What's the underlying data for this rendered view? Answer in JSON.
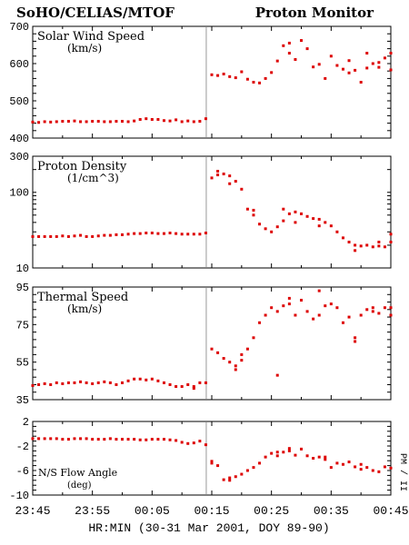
{
  "header": {
    "left_title": "SoHO/CELIAS/MTOF",
    "right_title": "Proton Monitor"
  },
  "xaxis": {
    "label": "HR:MIN (30-31 Mar 2001, DOY 89-90)",
    "tick_labels": [
      "23:45",
      "23:55",
      "00:05",
      "00:15",
      "00:25",
      "00:35",
      "00:45"
    ],
    "range_minutes": [
      0,
      60
    ]
  },
  "side_label": "PM / II",
  "colors": {
    "data": "#dd0000",
    "axes": "#000000",
    "divider": "#999999",
    "background": "#ffffff"
  },
  "chart_data": [
    {
      "type": "scatter",
      "title": "Solar Wind Speed",
      "units": "(km/s)",
      "x_unit": "minutes after 23:45",
      "ylim": [
        400,
        700
      ],
      "log": false,
      "yticks": [
        "700",
        "600",
        "500",
        "400"
      ],
      "ytick_values": [
        700,
        600,
        500,
        400
      ],
      "gap_at": 29,
      "x": [
        0,
        1,
        2,
        3,
        4,
        5,
        6,
        7,
        8,
        9,
        10,
        11,
        12,
        13,
        14,
        15,
        16,
        17,
        18,
        19,
        20,
        21,
        22,
        23,
        24,
        25,
        26,
        27,
        28,
        29,
        30,
        31,
        32,
        33,
        34,
        35,
        36,
        37,
        38,
        39,
        40,
        41,
        42,
        43,
        44,
        45,
        46,
        47,
        48,
        49,
        50,
        51,
        52,
        53,
        54,
        55,
        56,
        57,
        58,
        59,
        60
      ],
      "values": [
        443,
        442,
        444,
        443,
        444,
        445,
        445,
        446,
        444,
        444,
        445,
        445,
        444,
        444,
        445,
        445,
        444,
        446,
        450,
        452,
        450,
        450,
        447,
        446,
        449,
        444,
        446,
        444,
        445,
        452,
        570,
        568,
        572,
        565,
        562,
        578,
        558,
        550,
        548,
        560,
        576,
        607,
        648,
        628,
        611,
        662,
        640,
        591,
        598,
        560,
        620,
        595,
        585,
        575,
        582,
        550,
        588,
        600,
        590,
        615,
        583
      ],
      "extra_points": [
        [
          43,
          655
        ],
        [
          56,
          628
        ],
        [
          58,
          603
        ],
        [
          60,
          628
        ],
        [
          53,
          608
        ]
      ]
    },
    {
      "type": "scatter",
      "title": "Proton Density",
      "units": "(1/cm^3)",
      "x_unit": "minutes after 23:45",
      "ylim": [
        10,
        300
      ],
      "log": true,
      "yticks": [
        "300",
        "100",
        "10"
      ],
      "ytick_values": [
        300,
        100,
        10
      ],
      "gap_at": 29,
      "x": [
        0,
        1,
        2,
        3,
        4,
        5,
        6,
        7,
        8,
        9,
        10,
        11,
        12,
        13,
        14,
        15,
        16,
        17,
        18,
        19,
        20,
        21,
        22,
        23,
        24,
        25,
        26,
        27,
        28,
        29,
        30,
        31,
        32,
        33,
        34,
        35,
        36,
        37,
        38,
        39,
        40,
        41,
        42,
        43,
        44,
        45,
        46,
        47,
        48,
        49,
        50,
        51,
        52,
        53,
        54,
        55,
        56,
        57,
        58,
        59,
        60
      ],
      "values": [
        26,
        26,
        26,
        26,
        26,
        26.5,
        26,
        26.5,
        27,
        26,
        26,
        26.5,
        27,
        27,
        27.5,
        27.5,
        28,
        28.5,
        28.5,
        29,
        29,
        28.5,
        28.5,
        29,
        28.5,
        28,
        28,
        28,
        28,
        29,
        155,
        170,
        175,
        165,
        140,
        110,
        60,
        50,
        38,
        33,
        30,
        35,
        42,
        52,
        55,
        52,
        48,
        45,
        44,
        40,
        36,
        30,
        25,
        22,
        20,
        19.5,
        20,
        19,
        19.5,
        19,
        22
      ],
      "extra_points": [
        [
          31,
          190
        ],
        [
          33,
          130
        ],
        [
          37,
          58
        ],
        [
          42,
          60
        ],
        [
          44,
          40
        ],
        [
          48,
          36
        ],
        [
          54,
          17
        ],
        [
          58,
          22
        ],
        [
          60,
          28
        ]
      ]
    },
    {
      "type": "scatter",
      "title": "Thermal Speed",
      "units": "(km/s)",
      "x_unit": "minutes after 23:45",
      "ylim": [
        35,
        95
      ],
      "log": false,
      "yticks": [
        "95",
        "75",
        "55",
        "35"
      ],
      "ytick_values": [
        95,
        75,
        55,
        35
      ],
      "gap_at": 29,
      "x": [
        0,
        1,
        2,
        3,
        4,
        5,
        6,
        7,
        8,
        9,
        10,
        11,
        12,
        13,
        14,
        15,
        16,
        17,
        18,
        19,
        20,
        21,
        22,
        23,
        24,
        25,
        26,
        27,
        28,
        29,
        30,
        31,
        32,
        33,
        34,
        35,
        36,
        37,
        38,
        39,
        40,
        41,
        42,
        43,
        44,
        45,
        46,
        47,
        48,
        49,
        50,
        51,
        52,
        53,
        54,
        55,
        56,
        57,
        58,
        59,
        60
      ],
      "values": [
        42.5,
        43,
        43.5,
        43,
        44,
        43.5,
        44,
        44,
        44.5,
        44,
        43.5,
        44,
        44.5,
        44,
        43,
        44,
        45,
        46,
        46,
        45.5,
        46,
        45,
        44,
        43,
        42,
        42,
        43,
        42,
        44,
        44,
        62,
        60,
        57,
        55,
        53,
        56,
        62,
        68,
        76,
        80,
        84,
        82,
        85,
        86,
        80,
        88,
        82,
        78,
        80,
        85,
        86,
        84,
        76,
        79,
        68,
        80,
        83,
        84,
        81,
        84,
        80
      ],
      "extra_points": [
        [
          27,
          41
        ],
        [
          34,
          51
        ],
        [
          35,
          59
        ],
        [
          41,
          48
        ],
        [
          43,
          89
        ],
        [
          48,
          93
        ],
        [
          54,
          66
        ],
        [
          57,
          82
        ],
        [
          60,
          84
        ]
      ]
    },
    {
      "type": "scatter",
      "title": "N/S Flow Angle",
      "units": "(deg)",
      "x_unit": "minutes after 23:45",
      "ylim": [
        -10,
        2
      ],
      "log": false,
      "yticks": [
        "2",
        "-2",
        "-6",
        "-10"
      ],
      "ytick_values": [
        2,
        -2,
        -6,
        -10
      ],
      "gap_at": 29,
      "x": [
        0,
        1,
        2,
        3,
        4,
        5,
        6,
        7,
        8,
        9,
        10,
        11,
        12,
        13,
        14,
        15,
        16,
        17,
        18,
        19,
        20,
        21,
        22,
        23,
        24,
        25,
        26,
        27,
        28,
        29,
        30,
        31,
        32,
        33,
        34,
        35,
        36,
        37,
        38,
        39,
        40,
        41,
        42,
        43,
        44,
        45,
        46,
        47,
        48,
        49,
        50,
        51,
        52,
        53,
        54,
        55,
        56,
        57,
        58,
        59,
        60
      ],
      "values": [
        -0.8,
        -0.8,
        -0.8,
        -0.8,
        -0.8,
        -0.9,
        -0.9,
        -0.8,
        -0.8,
        -0.8,
        -0.9,
        -0.9,
        -0.9,
        -0.8,
        -0.9,
        -0.9,
        -0.9,
        -0.9,
        -1.0,
        -1.0,
        -0.9,
        -0.9,
        -0.9,
        -1.0,
        -1.1,
        -1.4,
        -1.6,
        -1.5,
        -1.2,
        -1.8,
        -4.5,
        -5.2,
        -7.5,
        -7.6,
        -7.0,
        -6.6,
        -6.0,
        -5.5,
        -4.8,
        -3.8,
        -3.2,
        -3.6,
        -3.0,
        -2.8,
        -3.5,
        -2.5,
        -3.6,
        -4.0,
        -3.8,
        -4.2,
        -5.5,
        -4.8,
        -5.0,
        -4.6,
        -5.4,
        -5.8,
        -5.5,
        -6.0,
        -6.2,
        -5.4,
        -5.6
      ],
      "extra_points": [
        [
          30,
          -4.8
        ],
        [
          33,
          -7.2
        ],
        [
          41,
          -3.0
        ],
        [
          43,
          -2.4
        ],
        [
          49,
          -3.8
        ],
        [
          55,
          -5.0
        ]
      ]
    }
  ]
}
